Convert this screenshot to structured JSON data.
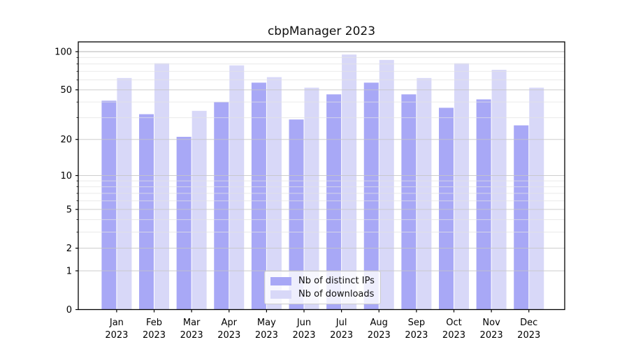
{
  "figure": {
    "title": "cbpManager 2023"
  },
  "chart_data": {
    "type": "bar",
    "title": "cbpManager 2023",
    "y_scale": "log1p",
    "grid": "major+minor",
    "legend_position": "lower center",
    "x_year": "2023",
    "categories": [
      "Jan",
      "Feb",
      "Mar",
      "Apr",
      "May",
      "Jun",
      "Jul",
      "Aug",
      "Sep",
      "Oct",
      "Nov",
      "Dec"
    ],
    "series": [
      {
        "name": "Nb of distinct IPs",
        "color": "#a8a8f6",
        "values": [
          41,
          32,
          21,
          40,
          57,
          29,
          46,
          57,
          46,
          36,
          42,
          26
        ]
      },
      {
        "name": "Nb of downloads",
        "color": "#d8d8f8",
        "values": [
          62,
          81,
          34,
          78,
          63,
          52,
          95,
          86,
          62,
          81,
          72,
          52
        ]
      }
    ],
    "y_major_ticks": [
      0,
      1,
      2,
      5,
      10,
      20,
      50,
      100
    ],
    "y_minor_ticks": [
      3,
      4,
      6,
      7,
      8,
      9,
      30,
      40,
      60,
      70,
      80,
      90
    ],
    "ylim": [
      0,
      120
    ],
    "axis_color": "#000000",
    "grid_major_color": "#c6c6c6",
    "grid_top_color": "#a6a6a6",
    "grid_minor_color": "#e3e3e3"
  }
}
